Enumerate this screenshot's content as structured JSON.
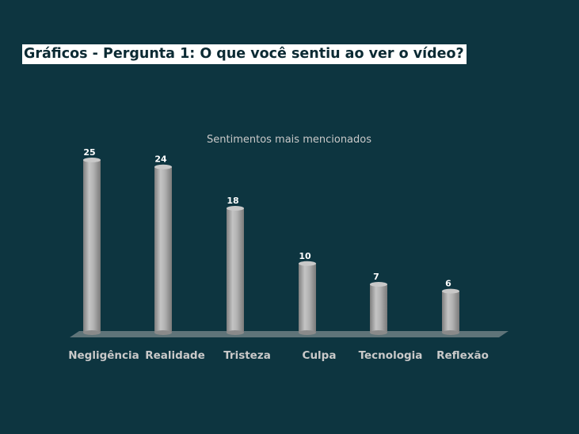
{
  "slide": {
    "title": "Gráficos - Pergunta 1: O que você sentiu ao ver o vídeo?"
  },
  "colors": {
    "background": "#0d3540",
    "bar": "#a9a9a9",
    "floor": "#5f7479",
    "text": "#c9c9c9",
    "value_label": "#ffffff"
  },
  "chart_data": {
    "type": "bar",
    "title": "Sentimentos mais mencionados",
    "categories": [
      "Negligência",
      "Realidade",
      "Tristeza",
      "Culpa",
      "Tecnologia",
      "Reflexão"
    ],
    "values": [
      25,
      24,
      18,
      10,
      7,
      6
    ],
    "ylim": [
      0,
      25
    ],
    "xlabel": "",
    "ylabel": "",
    "grid": false,
    "legend": "none",
    "data_labels": true
  }
}
